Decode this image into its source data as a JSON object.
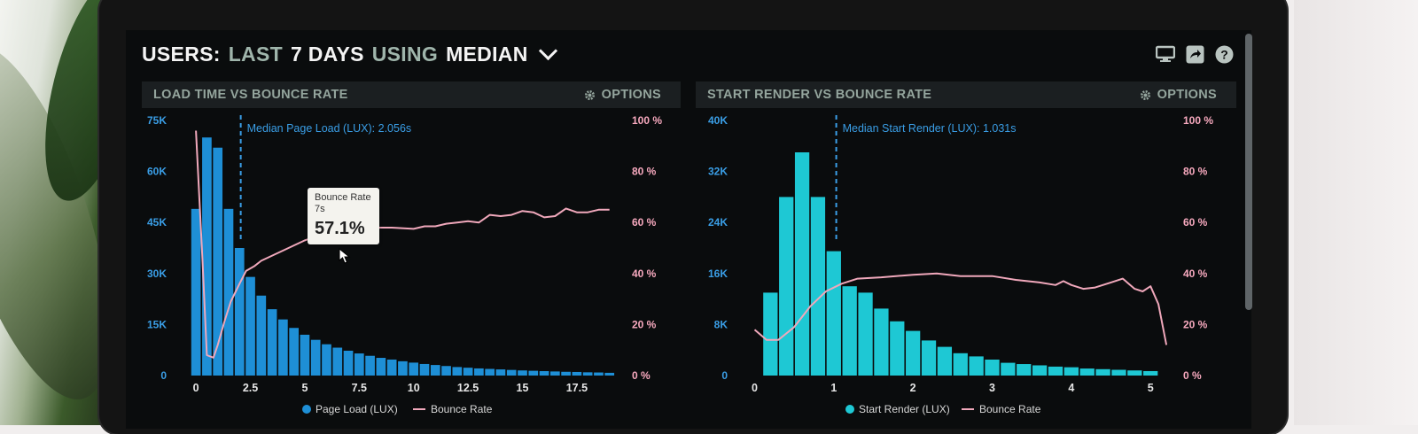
{
  "header": {
    "title_parts": [
      {
        "text": "USERS:",
        "color": "white"
      },
      {
        "text": "LAST",
        "color": "gray"
      },
      {
        "text": "7 DAYS",
        "color": "white"
      },
      {
        "text": "USING",
        "color": "gray"
      },
      {
        "text": "MEDIAN",
        "color": "white"
      }
    ],
    "icons": [
      "monitor-icon",
      "share-icon",
      "help-icon"
    ]
  },
  "colors": {
    "background": "#0a0c0d",
    "panel_header": "#1b1f21",
    "load_bars": "#1e8fd6",
    "render_bars": "#1ec8d4",
    "bounce_line": "#f0a8bb",
    "left_axis_text": "#3a9ee6",
    "right_axis_text": "#f7a9be"
  },
  "panels": [
    {
      "title": "LOAD TIME VS BOUNCE RATE",
      "options_label": "OPTIONS",
      "median_label": "Median Page Load (LUX): 2.056s",
      "tooltip": {
        "title": "Bounce Rate",
        "sub": "7s",
        "value": "57.1%"
      },
      "legend": [
        {
          "label": "Page Load (LUX)",
          "marker": "dot"
        },
        {
          "label": "Bounce Rate",
          "marker": "line"
        }
      ]
    },
    {
      "title": "START RENDER VS BOUNCE RATE",
      "options_label": "OPTIONS",
      "median_label": "Median Start Render (LUX): 1.031s",
      "legend": [
        {
          "label": "Start Render (LUX)",
          "marker": "dot"
        },
        {
          "label": "Bounce Rate",
          "marker": "line"
        }
      ]
    }
  ],
  "chart_data": [
    {
      "type": "bar",
      "title": "LOAD TIME VS BOUNCE RATE",
      "x_ticks": [
        "0",
        "2.5",
        "5",
        "7.5",
        "10",
        "12.5",
        "15",
        "17.5"
      ],
      "x_tick_values": [
        0,
        2.5,
        5,
        7.5,
        10,
        12.5,
        15,
        17.5
      ],
      "xlim": [
        -0.25,
        19.5
      ],
      "y_ticks": [
        "0",
        "15K",
        "30K",
        "45K",
        "60K",
        "75K"
      ],
      "ylim": [
        0,
        75000
      ],
      "y2_ticks": [
        "0 %",
        "20 %",
        "40 %",
        "60 %",
        "80 %",
        "100 %"
      ],
      "y2lim": [
        0,
        100
      ],
      "median": 2.056,
      "tooltip_at": [
        7,
        57.1
      ],
      "series": [
        {
          "name": "Page Load (LUX)",
          "type": "bar",
          "bar_width": 0.5,
          "x": [
            0,
            0.5,
            1,
            1.5,
            2,
            2.5,
            3,
            3.5,
            4,
            4.5,
            5,
            5.5,
            6,
            6.5,
            7,
            7.5,
            8,
            8.5,
            9,
            9.5,
            10,
            10.5,
            11,
            11.5,
            12,
            12.5,
            13,
            13.5,
            14,
            14.5,
            15,
            15.5,
            16,
            16.5,
            17,
            17.5,
            18,
            18.5,
            19
          ],
          "values": [
            49000,
            70000,
            67000,
            49000,
            37500,
            29000,
            23500,
            19500,
            16500,
            14000,
            12000,
            10500,
            9200,
            8200,
            7300,
            6500,
            5800,
            5200,
            4700,
            4200,
            3800,
            3400,
            3100,
            2800,
            2500,
            2300,
            2100,
            1950,
            1800,
            1650,
            1500,
            1400,
            1300,
            1200,
            1100,
            1050,
            950,
            900,
            800
          ]
        },
        {
          "name": "Bounce Rate",
          "type": "line",
          "x": [
            0,
            0.3,
            0.5,
            0.8,
            1,
            1.3,
            1.6,
            2,
            2.3,
            2.7,
            3,
            4,
            5,
            6,
            7,
            7.5,
            8,
            9,
            10,
            10.5,
            11,
            11.5,
            12,
            12.5,
            13,
            13.5,
            14,
            14.5,
            15,
            15.5,
            16,
            16.5,
            17,
            17.5,
            18,
            18.5,
            19
          ],
          "values": [
            96,
            45,
            8,
            7,
            12,
            21,
            29,
            36,
            41,
            43,
            45,
            49,
            53,
            56,
            57,
            57.5,
            58,
            58,
            57.5,
            58.5,
            58.5,
            59.5,
            60,
            60.5,
            60,
            63,
            62.5,
            63,
            64.5,
            64,
            62,
            62.5,
            65.5,
            64,
            64,
            65,
            65
          ]
        }
      ]
    },
    {
      "type": "bar",
      "title": "START RENDER VS BOUNCE RATE",
      "x_ticks": [
        "0",
        "1",
        "2",
        "3",
        "4",
        "5"
      ],
      "x_tick_values": [
        0,
        1,
        2,
        3,
        4,
        5
      ],
      "xlim": [
        -0.05,
        5.3
      ],
      "y_ticks": [
        "0",
        "8K",
        "16K",
        "24K",
        "32K",
        "40K"
      ],
      "ylim": [
        0,
        40000
      ],
      "y2_ticks": [
        "0 %",
        "20 %",
        "40 %",
        "60 %",
        "80 %",
        "100 %"
      ],
      "y2lim": [
        0,
        100
      ],
      "median": 1.031,
      "series": [
        {
          "name": "Start Render (LUX)",
          "type": "bar",
          "bar_width": 0.2,
          "x": [
            0.2,
            0.4,
            0.6,
            0.8,
            1.0,
            1.2,
            1.4,
            1.6,
            1.8,
            2.0,
            2.2,
            2.4,
            2.6,
            2.8,
            3.0,
            3.2,
            3.4,
            3.6,
            3.8,
            4.0,
            4.2,
            4.4,
            4.6,
            4.8,
            5.0
          ],
          "values": [
            13000,
            28000,
            35000,
            28000,
            19500,
            14000,
            13000,
            10500,
            8500,
            7000,
            5500,
            4500,
            3500,
            3000,
            2500,
            2000,
            1800,
            1600,
            1400,
            1300,
            1100,
            1000,
            900,
            800,
            700
          ]
        },
        {
          "name": "Bounce Rate",
          "type": "line",
          "x": [
            0,
            0.15,
            0.3,
            0.5,
            0.7,
            0.9,
            1.1,
            1.3,
            1.6,
            2.0,
            2.3,
            2.6,
            3.0,
            3.3,
            3.6,
            3.8,
            3.9,
            4.0,
            4.15,
            4.3,
            4.5,
            4.65,
            4.8,
            4.9,
            5.0,
            5.1,
            5.2
          ],
          "values": [
            18,
            14,
            14,
            19,
            27,
            33,
            36,
            38,
            38.5,
            39.5,
            40,
            39,
            39,
            37.5,
            36.5,
            35.5,
            37,
            35.5,
            34,
            34.5,
            36.5,
            38,
            34,
            33,
            35,
            28,
            12
          ]
        }
      ]
    }
  ]
}
